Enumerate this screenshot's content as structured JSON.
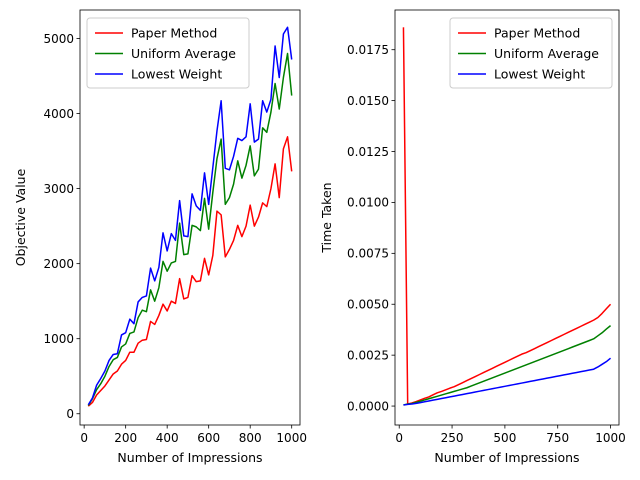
{
  "chart_data": [
    {
      "type": "line",
      "xlabel": "Number of Impressions",
      "ylabel": "Objective Value",
      "xlim": [
        -20,
        1040
      ],
      "ylim": [
        -150,
        5380
      ],
      "xticks": [
        0,
        200,
        400,
        600,
        800,
        1000
      ],
      "xtick_labels": [
        "0",
        "200",
        "400",
        "600",
        "800",
        "1000"
      ],
      "yticks": [
        0,
        1000,
        2000,
        3000,
        4000,
        5000
      ],
      "ytick_labels": [
        "0",
        "1000",
        "2000",
        "3000",
        "4000",
        "5000"
      ],
      "legend_position": "upper-left",
      "grid": false,
      "x": [
        20,
        40,
        60,
        80,
        100,
        120,
        140,
        160,
        180,
        200,
        220,
        240,
        260,
        280,
        300,
        320,
        340,
        360,
        380,
        400,
        420,
        440,
        460,
        480,
        500,
        520,
        540,
        560,
        580,
        600,
        620,
        640,
        660,
        680,
        700,
        720,
        740,
        760,
        780,
        800,
        820,
        840,
        860,
        880,
        900,
        920,
        940,
        960,
        980,
        1000
      ],
      "series": [
        {
          "name": "Paper Method",
          "color": "#ff0000",
          "values": [
            100,
            150,
            250,
            310,
            370,
            450,
            530,
            570,
            660,
            710,
            820,
            820,
            940,
            980,
            990,
            1230,
            1190,
            1310,
            1460,
            1370,
            1500,
            1470,
            1800,
            1530,
            1550,
            1840,
            1760,
            1770,
            2070,
            1850,
            2110,
            2700,
            2650,
            2090,
            2190,
            2310,
            2510,
            2360,
            2500,
            2780,
            2500,
            2620,
            2810,
            2760,
            3000,
            3330,
            2880,
            3530,
            3690,
            3230
          ]
        },
        {
          "name": "Uniform Average",
          "color": "#008000",
          "values": [
            110,
            200,
            320,
            400,
            500,
            630,
            720,
            750,
            890,
            930,
            1070,
            1090,
            1280,
            1380,
            1360,
            1650,
            1500,
            1680,
            2030,
            1900,
            2010,
            2030,
            2540,
            2120,
            2130,
            2510,
            2490,
            2440,
            2870,
            2460,
            2950,
            3400,
            3660,
            2790,
            2880,
            3060,
            3370,
            3140,
            3310,
            3570,
            3170,
            3260,
            3810,
            3750,
            4020,
            4400,
            4060,
            4480,
            4800,
            4240
          ]
        },
        {
          "name": "Lowest Weight",
          "color": "#0000ff",
          "values": [
            120,
            210,
            380,
            470,
            570,
            710,
            790,
            800,
            1050,
            1080,
            1260,
            1200,
            1490,
            1550,
            1570,
            1940,
            1770,
            1950,
            2410,
            2170,
            2400,
            2310,
            2840,
            2370,
            2360,
            2930,
            2770,
            2710,
            3210,
            2790,
            3280,
            3770,
            4170,
            3270,
            3250,
            3430,
            3670,
            3640,
            3690,
            4130,
            3620,
            3660,
            4170,
            4020,
            4190,
            4900,
            4480,
            5060,
            5150,
            4720
          ]
        }
      ]
    },
    {
      "type": "line",
      "xlabel": "Number of Impressions",
      "ylabel": "Time Taken",
      "xlim": [
        -20,
        1040
      ],
      "ylim": [
        -0.00093,
        0.01945
      ],
      "xticks": [
        0,
        250,
        500,
        750,
        1000
      ],
      "xtick_labels": [
        "0",
        "250",
        "500",
        "750",
        "1000"
      ],
      "yticks": [
        0,
        0.0025,
        0.005,
        0.0075,
        0.01,
        0.0125,
        0.015,
        0.0175
      ],
      "ytick_labels": [
        "0.0000",
        "0.0025",
        "0.0050",
        "0.0075",
        "0.0100",
        "0.0125",
        "0.0150",
        "0.0175"
      ],
      "legend_position": "upper-right",
      "grid": false,
      "x": [
        20,
        40,
        60,
        80,
        100,
        120,
        140,
        160,
        180,
        200,
        220,
        240,
        260,
        280,
        300,
        320,
        340,
        360,
        380,
        400,
        420,
        440,
        460,
        480,
        500,
        520,
        540,
        560,
        580,
        600,
        620,
        640,
        660,
        680,
        700,
        720,
        740,
        760,
        780,
        800,
        820,
        840,
        860,
        880,
        900,
        920,
        940,
        960,
        980,
        1000
      ],
      "series": [
        {
          "name": "Paper Method",
          "color": "#ff0000",
          "values": [
            0.0186,
            0.0001,
            0.00015,
            0.00022,
            0.0003,
            0.00038,
            0.00045,
            0.00055,
            0.00065,
            0.00072,
            0.0008,
            0.00088,
            0.00095,
            0.00105,
            0.00115,
            0.00125,
            0.00135,
            0.00145,
            0.00155,
            0.00165,
            0.00175,
            0.00185,
            0.00195,
            0.00205,
            0.00215,
            0.00225,
            0.00235,
            0.00245,
            0.00255,
            0.00262,
            0.00272,
            0.00282,
            0.00292,
            0.00302,
            0.00312,
            0.00322,
            0.00332,
            0.00342,
            0.00352,
            0.00362,
            0.00372,
            0.00382,
            0.00392,
            0.00402,
            0.00412,
            0.00422,
            0.00435,
            0.00455,
            0.00478,
            0.005
          ]
        },
        {
          "name": "Uniform Average",
          "color": "#008000",
          "values": [
            5e-05,
            0.0001,
            0.00012,
            0.00018,
            0.00024,
            0.0003,
            0.00036,
            0.00042,
            0.00048,
            0.00054,
            0.0006,
            0.00066,
            0.00072,
            0.00078,
            0.00084,
            0.0009,
            0.00098,
            0.00106,
            0.00114,
            0.00122,
            0.0013,
            0.00138,
            0.00146,
            0.00154,
            0.00162,
            0.0017,
            0.00178,
            0.00186,
            0.00194,
            0.00202,
            0.0021,
            0.00218,
            0.00226,
            0.00234,
            0.00242,
            0.0025,
            0.00258,
            0.00266,
            0.00274,
            0.00282,
            0.0029,
            0.00298,
            0.00306,
            0.00314,
            0.00322,
            0.0033,
            0.00345,
            0.0036,
            0.00378,
            0.00395
          ]
        },
        {
          "name": "Lowest Weight",
          "color": "#0000ff",
          "values": [
            5e-05,
            8e-05,
            0.0001,
            0.00013,
            0.00017,
            0.00021,
            0.00025,
            0.00029,
            0.00033,
            0.00037,
            0.00041,
            0.00045,
            0.00049,
            0.00053,
            0.00057,
            0.00061,
            0.00065,
            0.00069,
            0.00073,
            0.00077,
            0.00081,
            0.00085,
            0.00089,
            0.00093,
            0.00097,
            0.00101,
            0.00105,
            0.00109,
            0.00113,
            0.00117,
            0.00121,
            0.00125,
            0.00129,
            0.00133,
            0.00137,
            0.00141,
            0.00145,
            0.00149,
            0.00153,
            0.00157,
            0.00161,
            0.00165,
            0.00169,
            0.00173,
            0.00177,
            0.00181,
            0.00192,
            0.00205,
            0.00218,
            0.00235
          ]
        }
      ]
    }
  ]
}
